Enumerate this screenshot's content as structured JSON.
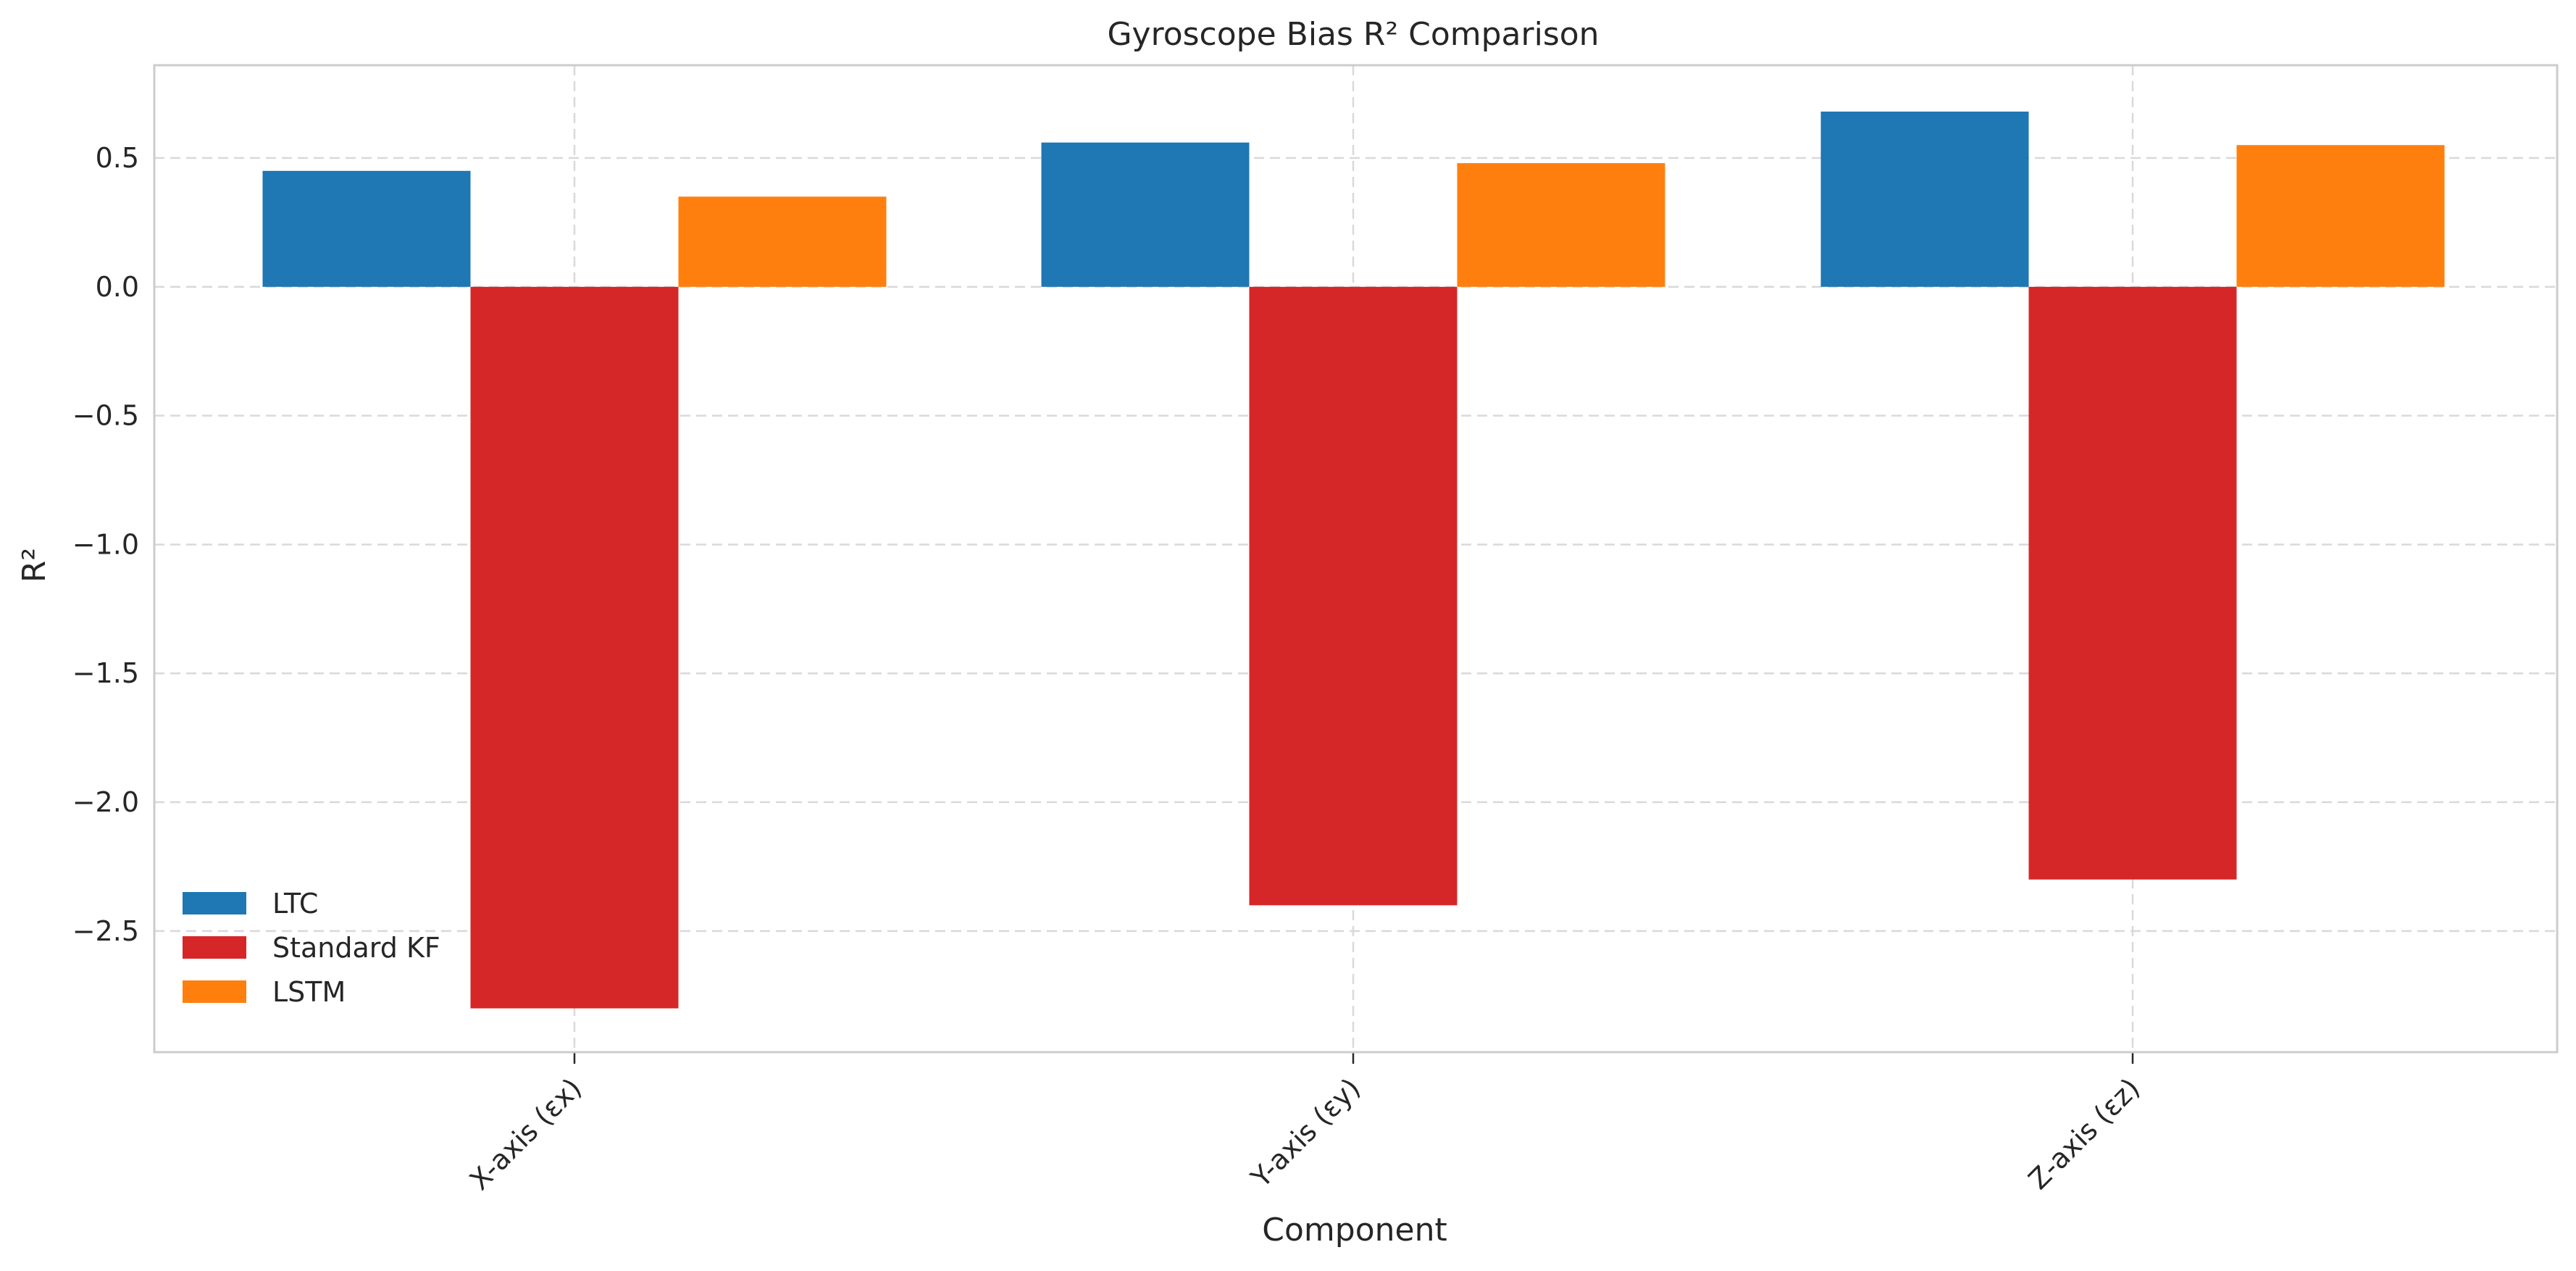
{
  "chart_data": {
    "type": "bar",
    "title": "Gyroscope Bias R² Comparison",
    "xlabel": "Component",
    "ylabel": "R²",
    "categories": [
      "X-axis (εx)",
      "Y-axis (εy)",
      "Z-axis (εz)"
    ],
    "series": [
      {
        "name": "LTC",
        "color": "#1f77b4",
        "values": [
          0.45,
          0.56,
          0.68
        ]
      },
      {
        "name": "Standard KF",
        "color": "#d62728",
        "values": [
          -2.8,
          -2.4,
          -2.3
        ]
      },
      {
        "name": "LSTM",
        "color": "#ff7f0e",
        "values": [
          0.35,
          0.48,
          0.55
        ]
      }
    ],
    "ylim": [
      -2.97,
      0.86
    ],
    "yticks": [
      0.5,
      0.0,
      -0.5,
      -1.0,
      -1.5,
      -2.0,
      -2.5
    ],
    "ytick_labels": [
      "0.5",
      "0.0",
      "−0.5",
      "−1.0",
      "−1.5",
      "−2.0",
      "−2.5"
    ],
    "grid": true,
    "legend_position": "lower-left"
  }
}
